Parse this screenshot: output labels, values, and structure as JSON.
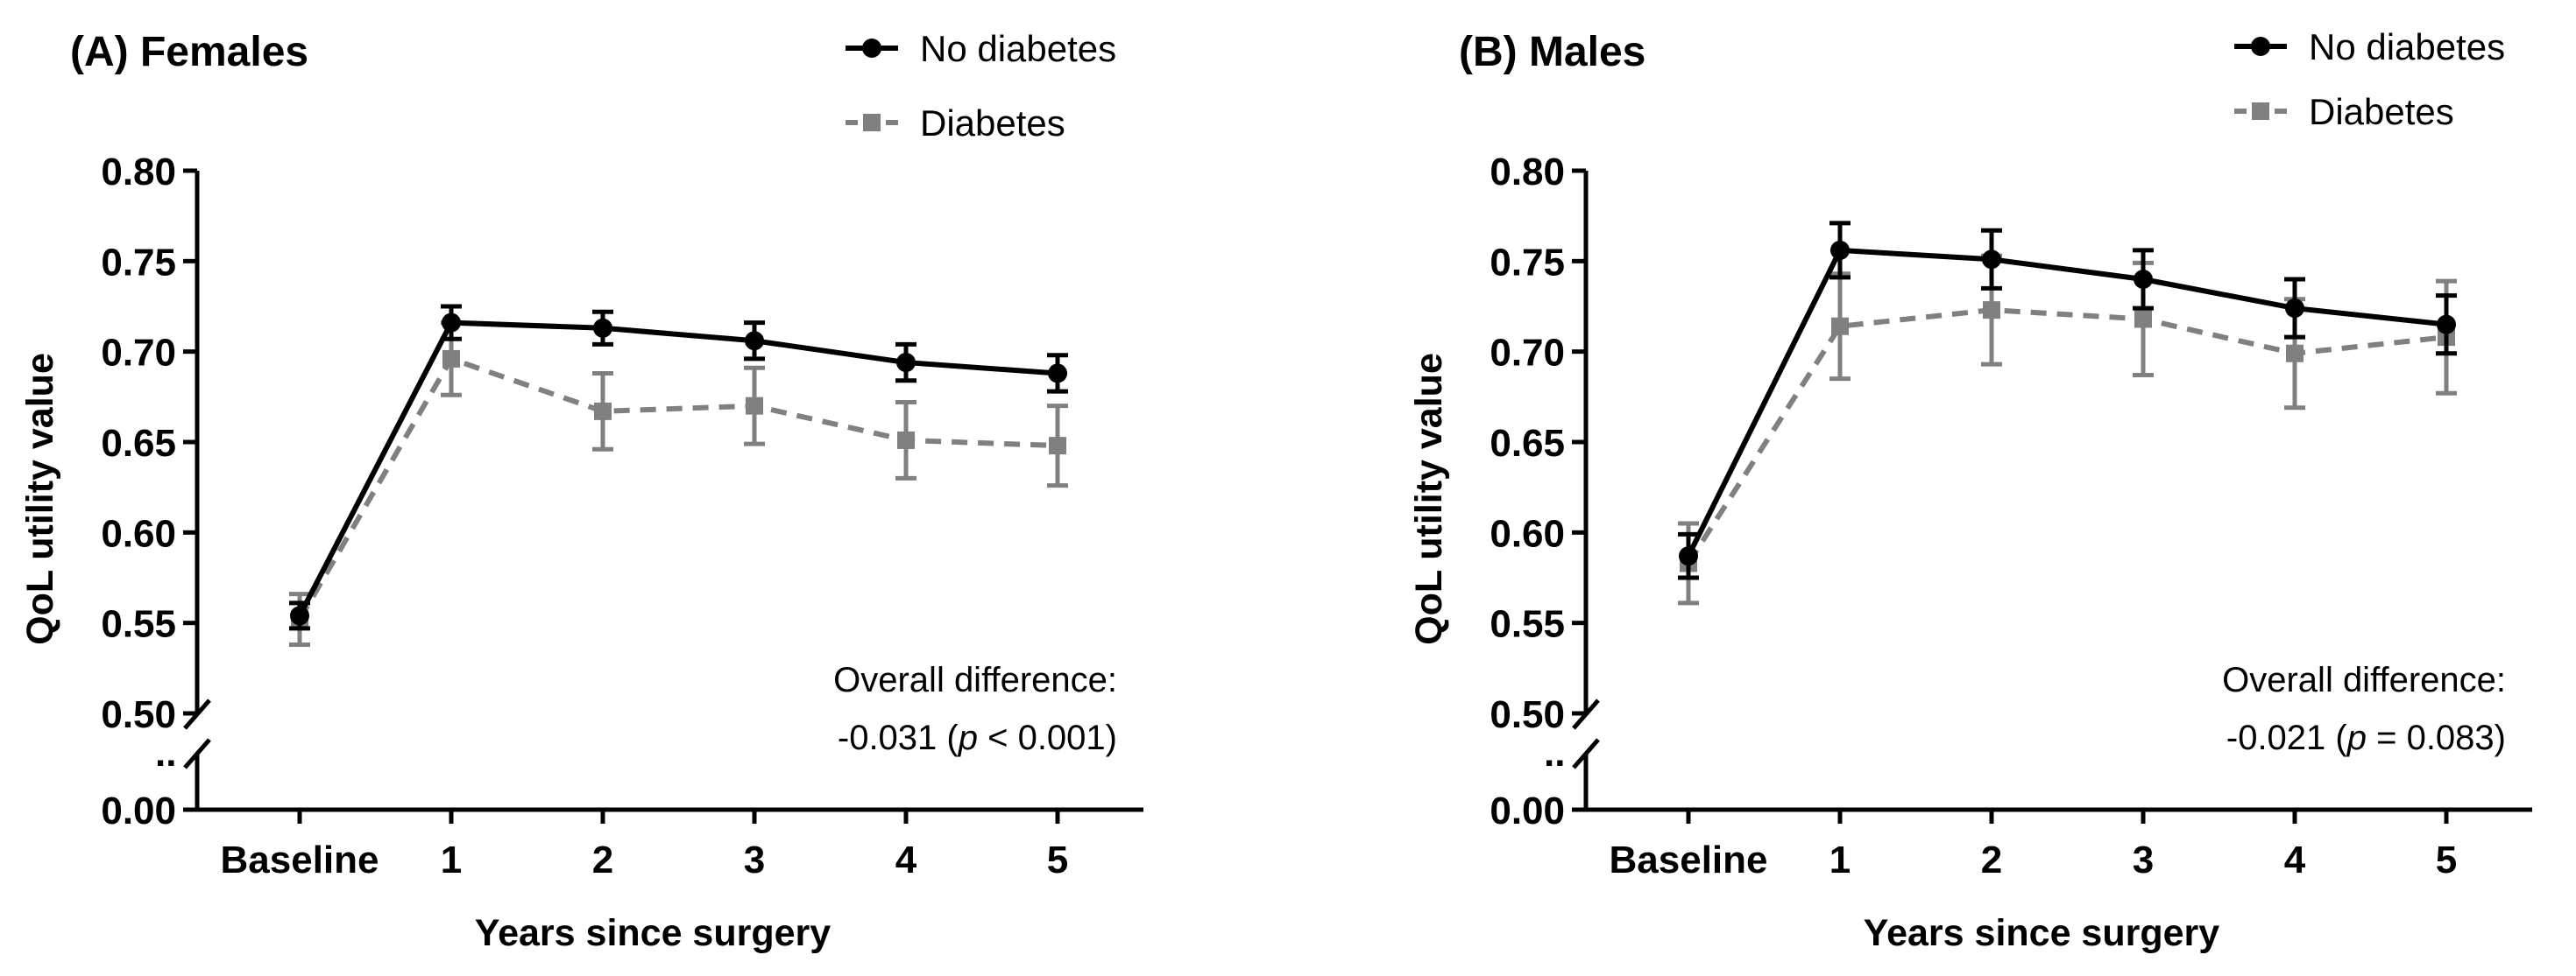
{
  "chart_data": [
    {
      "type": "line",
      "panel": "A",
      "title": "(A) Females",
      "xlabel": "Years since surgery",
      "ylabel": "QoL utility value",
      "categories": [
        "Baseline",
        "1",
        "2",
        "3",
        "4",
        "5"
      ],
      "yticks": [
        "0.00",
        "0.50",
        "0.55",
        "0.60",
        "0.65",
        "0.70",
        "0.75",
        "0.80"
      ],
      "ylim": [
        0.5,
        0.8
      ],
      "axis_break": "0.00 to 0.50",
      "break_dots": "..",
      "legend_position": "top-right",
      "series": [
        {
          "name": "No diabetes",
          "values": [
            0.554,
            0.716,
            0.713,
            0.706,
            0.694,
            0.688
          ],
          "error": [
            0.007,
            0.009,
            0.009,
            0.01,
            0.01,
            0.01
          ],
          "color": "#000000",
          "style": "solid",
          "marker": "circle"
        },
        {
          "name": "Diabetes",
          "values": [
            0.552,
            0.696,
            0.667,
            0.67,
            0.651,
            0.648
          ],
          "error": [
            0.014,
            0.02,
            0.021,
            0.021,
            0.021,
            0.022
          ],
          "color": "#808080",
          "style": "dashed",
          "marker": "square"
        }
      ],
      "annotation": {
        "line1": "Overall difference:",
        "line2_pre": "-0.031 (",
        "line2_p": "p",
        "line2_post": " < 0.001)"
      }
    },
    {
      "type": "line",
      "panel": "B",
      "title": "(B) Males",
      "xlabel": "Years since surgery",
      "ylabel": "QoL utility value",
      "categories": [
        "Baseline",
        "1",
        "2",
        "3",
        "4",
        "5"
      ],
      "yticks": [
        "0.00",
        "0.50",
        "0.55",
        "0.60",
        "0.65",
        "0.70",
        "0.75",
        "0.80"
      ],
      "ylim": [
        0.5,
        0.8
      ],
      "axis_break": "0.00 to 0.50",
      "break_dots": "..",
      "legend_position": "top-right",
      "series": [
        {
          "name": "No diabetes",
          "values": [
            0.587,
            0.756,
            0.751,
            0.74,
            0.724,
            0.715
          ],
          "error": [
            0.012,
            0.015,
            0.016,
            0.016,
            0.016,
            0.016
          ],
          "color": "#000000",
          "style": "solid",
          "marker": "circle"
        },
        {
          "name": "Diabetes",
          "values": [
            0.583,
            0.714,
            0.723,
            0.718,
            0.699,
            0.708
          ],
          "error": [
            0.022,
            0.029,
            0.03,
            0.031,
            0.03,
            0.031
          ],
          "color": "#808080",
          "style": "dashed",
          "marker": "square"
        }
      ],
      "annotation": {
        "line1": "Overall difference:",
        "line2_pre": "-0.021 (",
        "line2_p": "p",
        "line2_post": " = 0.083)"
      }
    }
  ]
}
